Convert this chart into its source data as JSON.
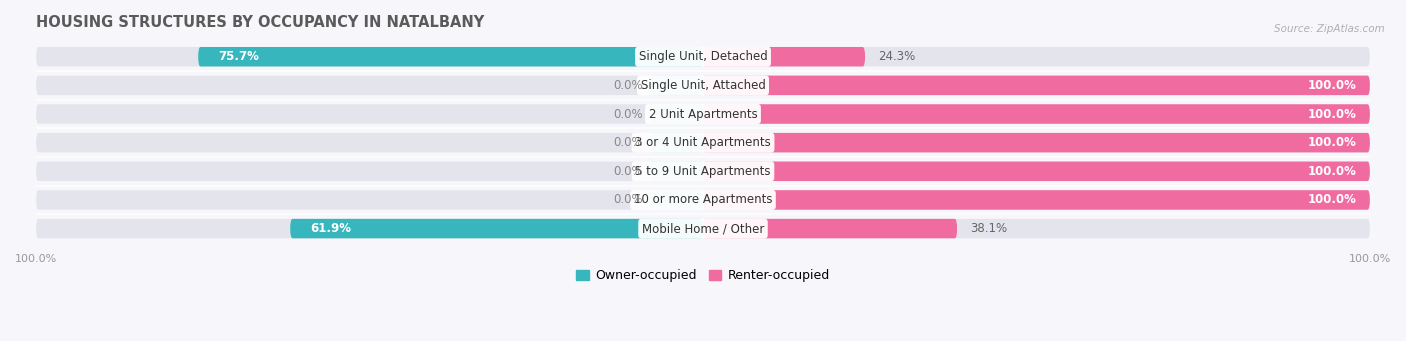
{
  "title": "HOUSING STRUCTURES BY OCCUPANCY IN NATALBANY",
  "source": "Source: ZipAtlas.com",
  "categories": [
    "Single Unit, Detached",
    "Single Unit, Attached",
    "2 Unit Apartments",
    "3 or 4 Unit Apartments",
    "5 to 9 Unit Apartments",
    "10 or more Apartments",
    "Mobile Home / Other"
  ],
  "owner_pct": [
    75.7,
    0.0,
    0.0,
    0.0,
    0.0,
    0.0,
    61.9
  ],
  "renter_pct": [
    24.3,
    100.0,
    100.0,
    100.0,
    100.0,
    100.0,
    38.1
  ],
  "owner_color": "#38b6be",
  "renter_color": "#f06ba0",
  "owner_light": "#9ed8dc",
  "renter_light": "#f8c0d5",
  "bar_bg_color": "#e4e4ed",
  "fig_bg": "#f7f7fb",
  "title_color": "#5a5a5a",
  "source_color": "#b0b0b0",
  "label_fontsize": 8.5,
  "pct_fontsize": 8.5,
  "title_fontsize": 10.5,
  "legend_owner": "Owner-occupied",
  "legend_renter": "Renter-occupied",
  "bar_height": 0.68,
  "figsize": [
    14.06,
    3.41
  ],
  "dpi": 100
}
